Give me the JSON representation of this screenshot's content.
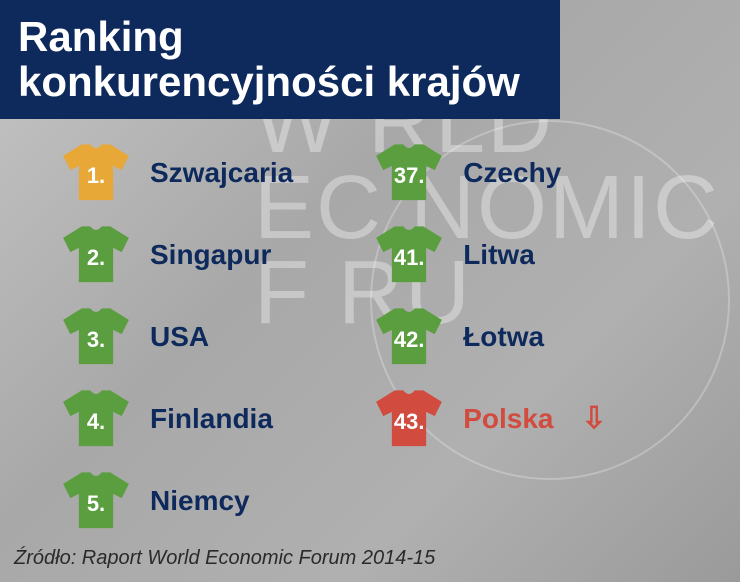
{
  "title": "Ranking konkurencyjności krajów",
  "source": "Źródło: Raport World Economic Forum 2014-15",
  "colors": {
    "title_bg": "#0e2a5c",
    "title_text": "#ffffff",
    "country_text": "#0e2a5c",
    "highlight_text": "#d14b3f",
    "shirt_gold": "#e8a838",
    "shirt_green": "#5a9e3f",
    "shirt_red": "#d14b3f",
    "rank_text": "#ffffff",
    "source_text": "#2a2a2a",
    "bg_gradient_from": "#c5c5c5",
    "bg_gradient_to": "#9a9a9a"
  },
  "bg_watermark": "WORLD ECONOMIC FORUM",
  "left_column": [
    {
      "rank": "1.",
      "country": "Szwajcaria",
      "shirt_color": "#e8a838",
      "highlight": false,
      "arrow": false
    },
    {
      "rank": "2.",
      "country": "Singapur",
      "shirt_color": "#5a9e3f",
      "highlight": false,
      "arrow": false
    },
    {
      "rank": "3.",
      "country": "USA",
      "shirt_color": "#5a9e3f",
      "highlight": false,
      "arrow": false
    },
    {
      "rank": "4.",
      "country": "Finlandia",
      "shirt_color": "#5a9e3f",
      "highlight": false,
      "arrow": false
    },
    {
      "rank": "5.",
      "country": "Niemcy",
      "shirt_color": "#5a9e3f",
      "highlight": false,
      "arrow": false
    }
  ],
  "right_column": [
    {
      "rank": "37.",
      "country": "Czechy",
      "shirt_color": "#5a9e3f",
      "highlight": false,
      "arrow": false
    },
    {
      "rank": "41.",
      "country": "Litwa",
      "shirt_color": "#5a9e3f",
      "highlight": false,
      "arrow": false
    },
    {
      "rank": "42.",
      "country": "Łotwa",
      "shirt_color": "#5a9e3f",
      "highlight": false,
      "arrow": false
    },
    {
      "rank": "43.",
      "country": "Polska",
      "shirt_color": "#d14b3f",
      "highlight": true,
      "arrow": true
    }
  ]
}
